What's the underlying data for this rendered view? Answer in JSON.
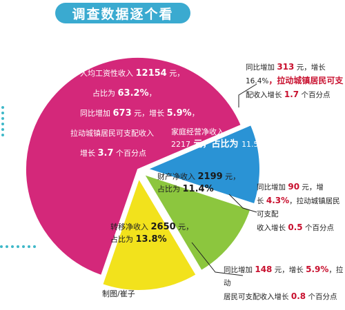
{
  "header": {
    "title": "调查数据逐个看",
    "bg_color": "#3aaad0"
  },
  "chart_data": {
    "type": "pie",
    "slices": [
      {
        "name": "工资性收入",
        "value": 63.2,
        "color": "#d4287a",
        "lines": [
          [
            "人均工资性收入 ",
            "12154",
            " 元，"
          ],
          [
            "占比为 ",
            "63.2%",
            "，"
          ],
          [
            "同比增加 ",
            "673",
            " 元，增长 ",
            "5.9%",
            "，"
          ],
          [
            "拉动城镇居民可支配收入"
          ],
          [
            "增长 ",
            "3.7",
            " 个百分点"
          ]
        ],
        "callout": []
      },
      {
        "name": "家庭经营净收入",
        "value": 11.5,
        "color": "#2a93d5",
        "lines": [
          [
            "家庭经营净收入"
          ],
          [
            "2217",
            " 元，占比为 ",
            "11.5%"
          ]
        ],
        "callout": [
          [
            "同比增加 ",
            "313",
            " 元，增长"
          ],
          [
            "16.4%",
            "，拉动城镇居民可支"
          ],
          [
            "配收入增长 ",
            "1.7",
            " 个百分点"
          ]
        ]
      },
      {
        "name": "财产净收入",
        "value": 11.4,
        "color": "#8cc63e",
        "lines": [
          [
            "财产净收入 ",
            "2199",
            " 元，"
          ],
          [
            "占比为 ",
            "11.4%"
          ]
        ],
        "callout": [
          [
            "同比增加 ",
            "90",
            " 元，增"
          ],
          [
            "长 ",
            "4.3%",
            "，拉动城镇居民可支配"
          ],
          [
            "收入增长 ",
            "0.5",
            " 个百分点"
          ]
        ]
      },
      {
        "name": "转移净收入",
        "value": 13.8,
        "color": "#f2e21c",
        "lines": [
          [
            "转移净收入 ",
            "2650",
            " 元，"
          ],
          [
            "占比为 ",
            "13.8%"
          ]
        ],
        "callout": [
          [
            "同比增加 ",
            "148",
            " 元，增长 ",
            "5.9%",
            "，拉动"
          ],
          [
            "居民可支配收入增长 ",
            "0.8",
            " 个百分点"
          ]
        ]
      }
    ]
  },
  "footer": {
    "credit": "制图/崔子"
  }
}
